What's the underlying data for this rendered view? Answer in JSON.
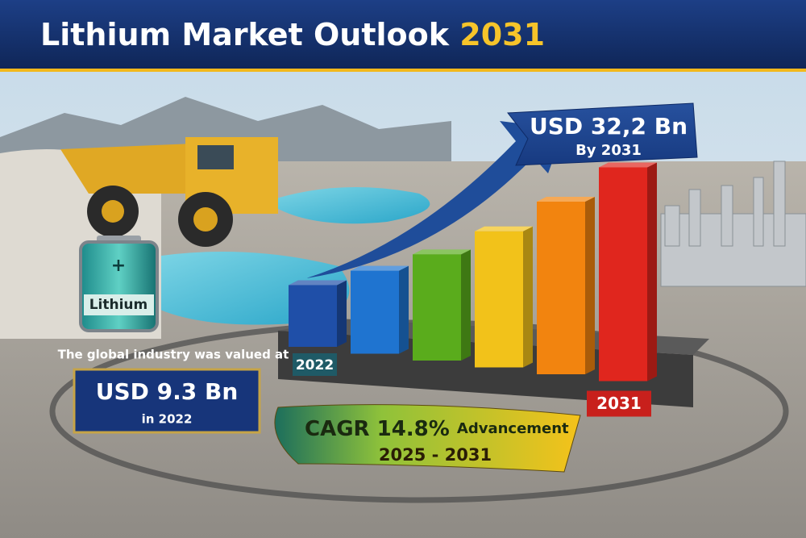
{
  "header": {
    "title": "Lithium Market Outlook",
    "title_year": "2031"
  },
  "battery_label": "Lithium",
  "forecast_banner": {
    "value": "USD 32,2 Bn",
    "year": "By 2031"
  },
  "base_callout": {
    "intro": "The global industry was valued at",
    "value": "USD 9.3 Bn",
    "year": "in 2022"
  },
  "cagr_banner": {
    "rate": "CAGR 14.8%",
    "label": "Advancement",
    "period": "2025 - 2031"
  },
  "chart_data": {
    "type": "bar",
    "categories": [
      "2022",
      null,
      null,
      null,
      null,
      "2031"
    ],
    "values": [
      9.3,
      12.5,
      16,
      20.5,
      26,
      32.2
    ],
    "colors": [
      "#1f4fa8",
      "#1f74d0",
      "#5aac1c",
      "#f2c21a",
      "#f2840f",
      "#e0261e"
    ]
  }
}
